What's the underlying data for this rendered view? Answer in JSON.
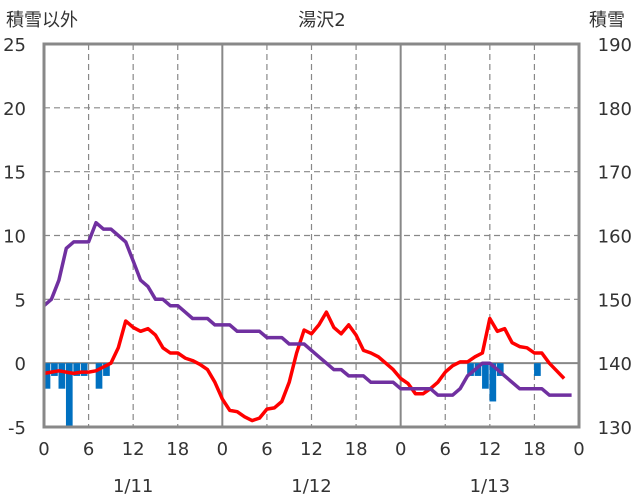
{
  "chart_data": {
    "type": "line",
    "title": "湯沢2",
    "left_axis_label": "積雪以外",
    "right_axis_label": "積雪",
    "left_ylim": [
      -5,
      25
    ],
    "left_yticks": [
      "-5",
      "0",
      "5",
      "10",
      "15",
      "20",
      "25"
    ],
    "right_ylim": [
      130,
      190
    ],
    "right_yticks": [
      "130",
      "140",
      "150",
      "160",
      "170",
      "180",
      "190"
    ],
    "x_hours_range": [
      0,
      72
    ],
    "x_tick_labels": [
      "0",
      "6",
      "12",
      "18",
      "0",
      "6",
      "12",
      "18",
      "0",
      "6",
      "12",
      "18",
      "0"
    ],
    "date_labels": [
      {
        "label": "1/11",
        "hour": 12
      },
      {
        "label": "1/12",
        "hour": 36
      },
      {
        "label": "1/13",
        "hour": 60
      }
    ],
    "grid": true,
    "series": [
      {
        "axis": "left",
        "type": "line",
        "color": "#ff0000",
        "points": [
          [
            0,
            -0.8
          ],
          [
            1,
            -0.7
          ],
          [
            2,
            -0.6
          ],
          [
            3,
            -0.7
          ],
          [
            4,
            -0.8
          ],
          [
            5,
            -0.7
          ],
          [
            6,
            -0.7
          ],
          [
            7,
            -0.6
          ],
          [
            8,
            -0.3
          ],
          [
            9,
            0
          ],
          [
            10,
            1.2
          ],
          [
            11,
            3.3
          ],
          [
            12,
            2.8
          ],
          [
            13,
            2.5
          ],
          [
            14,
            2.7
          ],
          [
            15,
            2.2
          ],
          [
            16,
            1.2
          ],
          [
            17,
            0.8
          ],
          [
            18,
            0.8
          ],
          [
            19,
            0.4
          ],
          [
            20,
            0.2
          ],
          [
            21,
            -0.1
          ],
          [
            22,
            -0.5
          ],
          [
            23,
            -1.5
          ],
          [
            24,
            -2.8
          ],
          [
            25,
            -3.7
          ],
          [
            26,
            -3.8
          ],
          [
            27,
            -4.2
          ],
          [
            28,
            -4.5
          ],
          [
            29,
            -4.3
          ],
          [
            30,
            -3.6
          ],
          [
            31,
            -3.5
          ],
          [
            32,
            -3.0
          ],
          [
            33,
            -1.5
          ],
          [
            34,
            0.8
          ],
          [
            35,
            2.6
          ],
          [
            36,
            2.3
          ],
          [
            37,
            3.0
          ],
          [
            38,
            4.0
          ],
          [
            39,
            2.8
          ],
          [
            40,
            2.3
          ],
          [
            41,
            3.0
          ],
          [
            42,
            2.2
          ],
          [
            43,
            1.0
          ],
          [
            44,
            0.8
          ],
          [
            45,
            0.5
          ],
          [
            46,
            0
          ],
          [
            47,
            -0.5
          ],
          [
            48,
            -1.2
          ],
          [
            49,
            -1.6
          ],
          [
            50,
            -2.4
          ],
          [
            51,
            -2.4
          ],
          [
            52,
            -2.0
          ],
          [
            53,
            -1.5
          ],
          [
            54,
            -0.7
          ],
          [
            55,
            -0.2
          ],
          [
            56,
            0.1
          ],
          [
            57,
            0.1
          ],
          [
            58,
            0.5
          ],
          [
            59,
            0.8
          ],
          [
            60,
            3.5
          ],
          [
            61,
            2.5
          ],
          [
            62,
            2.7
          ],
          [
            63,
            1.6
          ],
          [
            64,
            1.3
          ],
          [
            65,
            1.2
          ],
          [
            66,
            0.8
          ],
          [
            67,
            0.8
          ],
          [
            68,
            0
          ],
          [
            69,
            -0.6
          ],
          [
            70,
            -1.2
          ]
        ]
      },
      {
        "axis": "right",
        "type": "line",
        "color": "#7030a0",
        "points": [
          [
            0,
            149
          ],
          [
            1,
            150
          ],
          [
            2,
            153
          ],
          [
            3,
            158
          ],
          [
            4,
            159
          ],
          [
            5,
            159
          ],
          [
            6,
            159
          ],
          [
            7,
            162
          ],
          [
            8,
            161
          ],
          [
            9,
            161
          ],
          [
            10,
            160
          ],
          [
            11,
            159
          ],
          [
            12,
            156
          ],
          [
            13,
            153
          ],
          [
            14,
            152
          ],
          [
            15,
            150
          ],
          [
            16,
            150
          ],
          [
            17,
            149
          ],
          [
            18,
            149
          ],
          [
            19,
            148
          ],
          [
            20,
            147
          ],
          [
            21,
            147
          ],
          [
            22,
            147
          ],
          [
            23,
            146
          ],
          [
            24,
            146
          ],
          [
            25,
            146
          ],
          [
            26,
            145
          ],
          [
            27,
            145
          ],
          [
            28,
            145
          ],
          [
            29,
            145
          ],
          [
            30,
            144
          ],
          [
            31,
            144
          ],
          [
            32,
            144
          ],
          [
            33,
            143
          ],
          [
            34,
            143
          ],
          [
            35,
            143
          ],
          [
            36,
            142
          ],
          [
            37,
            141
          ],
          [
            38,
            140
          ],
          [
            39,
            139
          ],
          [
            40,
            139
          ],
          [
            41,
            138
          ],
          [
            42,
            138
          ],
          [
            43,
            138
          ],
          [
            44,
            137
          ],
          [
            45,
            137
          ],
          [
            46,
            137
          ],
          [
            47,
            137
          ],
          [
            48,
            136
          ],
          [
            49,
            136
          ],
          [
            50,
            136
          ],
          [
            51,
            136
          ],
          [
            52,
            136
          ],
          [
            53,
            135
          ],
          [
            54,
            135
          ],
          [
            55,
            135
          ],
          [
            56,
            136
          ],
          [
            57,
            138
          ],
          [
            58,
            139
          ],
          [
            59,
            140
          ],
          [
            60,
            140
          ],
          [
            61,
            139
          ],
          [
            62,
            138
          ],
          [
            63,
            137
          ],
          [
            64,
            136
          ],
          [
            65,
            136
          ],
          [
            66,
            136
          ],
          [
            67,
            136
          ],
          [
            68,
            135
          ],
          [
            69,
            135
          ],
          [
            70,
            135
          ],
          [
            71,
            135
          ]
        ]
      },
      {
        "axis": "left",
        "type": "bar",
        "color": "#0070c0",
        "points": [
          [
            0,
            -2
          ],
          [
            1,
            -1
          ],
          [
            2,
            -2
          ],
          [
            3,
            -5
          ],
          [
            4,
            -1
          ],
          [
            5,
            -1
          ],
          [
            6,
            0
          ],
          [
            7,
            -2
          ],
          [
            8,
            -1
          ],
          [
            9,
            0
          ],
          [
            57,
            -1
          ],
          [
            58,
            -1
          ],
          [
            59,
            -2
          ],
          [
            60,
            -3
          ],
          [
            61,
            -1
          ],
          [
            66,
            -1
          ]
        ]
      }
    ]
  }
}
